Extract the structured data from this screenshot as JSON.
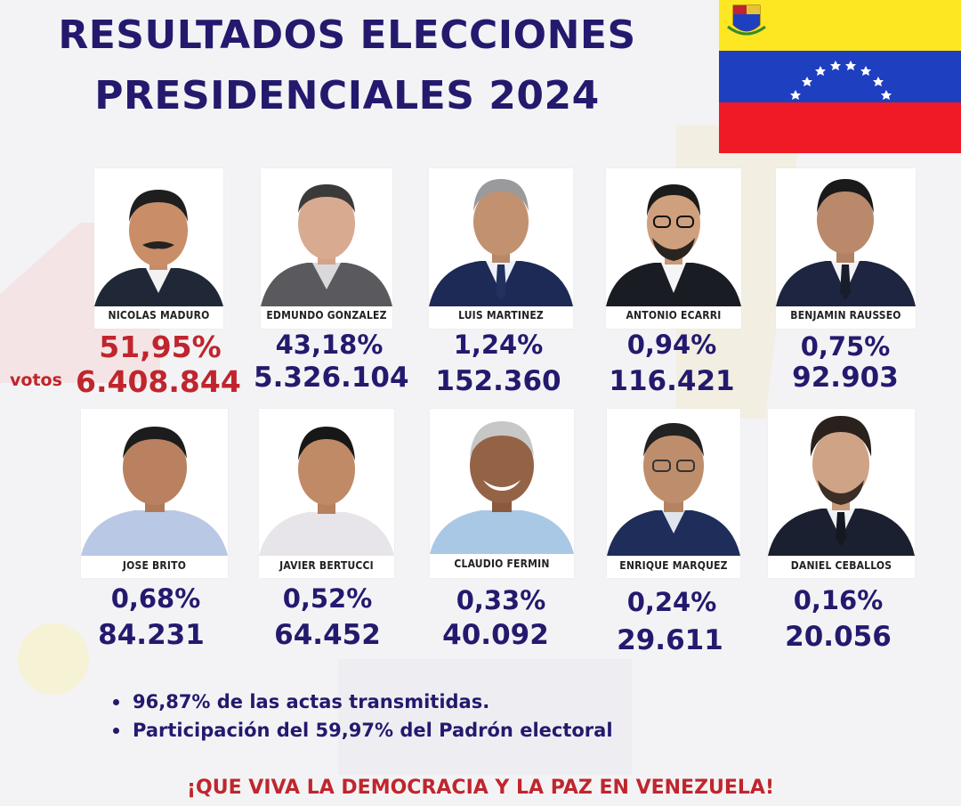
{
  "title_line1": "RESULTADOS ELECCIONES",
  "title_line2": "PRESIDENCIALES 2024",
  "colors": {
    "title": "#231a6e",
    "winner": "#c0252d",
    "flag_yellow": "#fde722",
    "flag_blue": "#1f3fc1",
    "flag_red": "#ef1a26"
  },
  "votes_label": "votos",
  "candidates": [
    {
      "name": "NICOLAS MADURO",
      "percent": "51,95%",
      "votes": "6.408.844"
    },
    {
      "name": "EDMUNDO GONZALEZ",
      "percent": "43,18%",
      "votes": "5.326.104"
    },
    {
      "name": "LUIS MARTINEZ",
      "percent": "1,24%",
      "votes": "152.360"
    },
    {
      "name": "ANTONIO ECARRI",
      "percent": "0,94%",
      "votes": "116.421"
    },
    {
      "name": "BENJAMIN RAUSSEO",
      "percent": "0,75%",
      "votes": "92.903"
    },
    {
      "name": "JOSE BRITO",
      "percent": "0,68%",
      "votes": "84.231"
    },
    {
      "name": "JAVIER BERTUCCI",
      "percent": "0,52%",
      "votes": "64.452"
    },
    {
      "name": "CLAUDIO FERMIN",
      "percent": "0,33%",
      "votes": "40.092"
    },
    {
      "name": "ENRIQUE MARQUEZ",
      "percent": "0,24%",
      "votes": "29.611"
    },
    {
      "name": "DANIEL CEBALLOS",
      "percent": "0,16%",
      "votes": "20.056"
    }
  ],
  "notes": [
    "96,87% de las actas transmitidas.",
    "Participación del 59,97% del Padrón electoral"
  ],
  "slogan": "¡QUE VIVA LA DEMOCRACIA Y LA PAZ EN VENEZUELA!"
}
